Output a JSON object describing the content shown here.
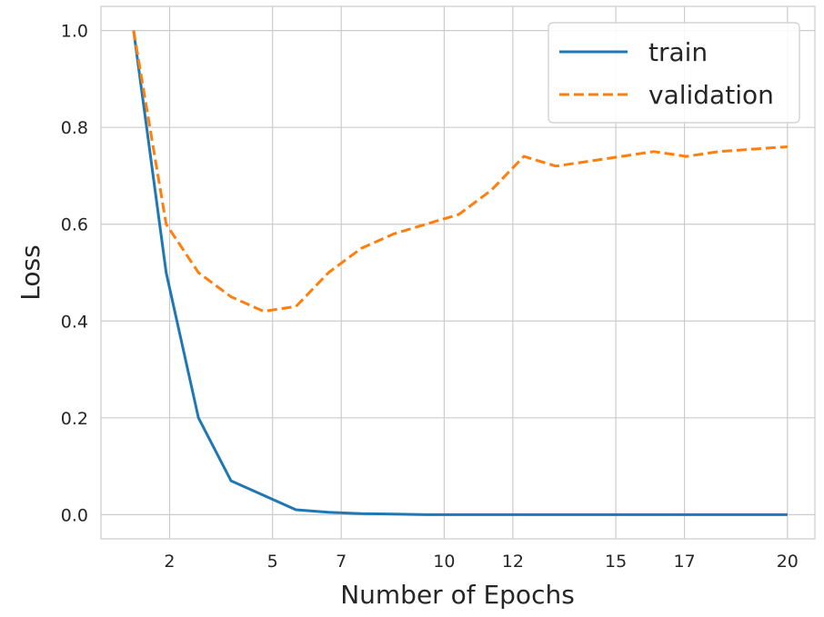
{
  "chart_data": {
    "type": "line",
    "xlabel": "Number of Epochs",
    "ylabel": "Loss",
    "xlim": [
      0.0,
      20.8
    ],
    "ylim": [
      -0.05,
      1.05
    ],
    "x_ticks": [
      2,
      5,
      7,
      10,
      12,
      15,
      17,
      20
    ],
    "y_ticks": [
      0.0,
      0.2,
      0.4,
      0.6,
      0.8,
      1.0
    ],
    "y_tick_labels": [
      "0.0",
      "0.2",
      "0.4",
      "0.6",
      "0.8",
      "1.0"
    ],
    "grid": true,
    "legend_position": "upper right",
    "x": [
      1,
      2,
      3,
      4,
      5,
      6,
      7,
      8,
      9,
      10,
      11,
      12,
      13,
      14,
      15,
      16,
      17,
      18,
      19,
      20
    ],
    "series": [
      {
        "name": "train",
        "style": "solid",
        "color": "#1f77b4",
        "x": [
          0.95,
          1.9,
          2.84,
          3.79,
          4.74,
          5.68,
          6.63,
          7.58,
          8.53,
          9.47,
          10.42,
          11.37,
          12.32,
          13.26,
          14.21,
          15.16,
          16.11,
          17.05,
          18.0,
          20.0
        ],
        "values": [
          1.0,
          0.5,
          0.2,
          0.07,
          0.04,
          0.01,
          0.005,
          0.002,
          0.001,
          0.0,
          0.0,
          0.0,
          0.0,
          0.0,
          0.0,
          0.0,
          0.0,
          0.0,
          0.0,
          0.0
        ]
      },
      {
        "name": "validation",
        "style": "dashed",
        "color": "#ff7f0e",
        "x": [
          0.95,
          1.9,
          2.84,
          3.79,
          4.74,
          5.68,
          6.63,
          7.58,
          8.53,
          9.47,
          10.42,
          11.37,
          12.32,
          13.26,
          14.21,
          15.16,
          16.11,
          17.05,
          18.0,
          20.0
        ],
        "values": [
          1.0,
          0.6,
          0.5,
          0.45,
          0.42,
          0.43,
          0.5,
          0.55,
          0.58,
          0.6,
          0.62,
          0.67,
          0.74,
          0.72,
          0.73,
          0.74,
          0.75,
          0.74,
          0.75,
          0.76
        ]
      }
    ]
  }
}
